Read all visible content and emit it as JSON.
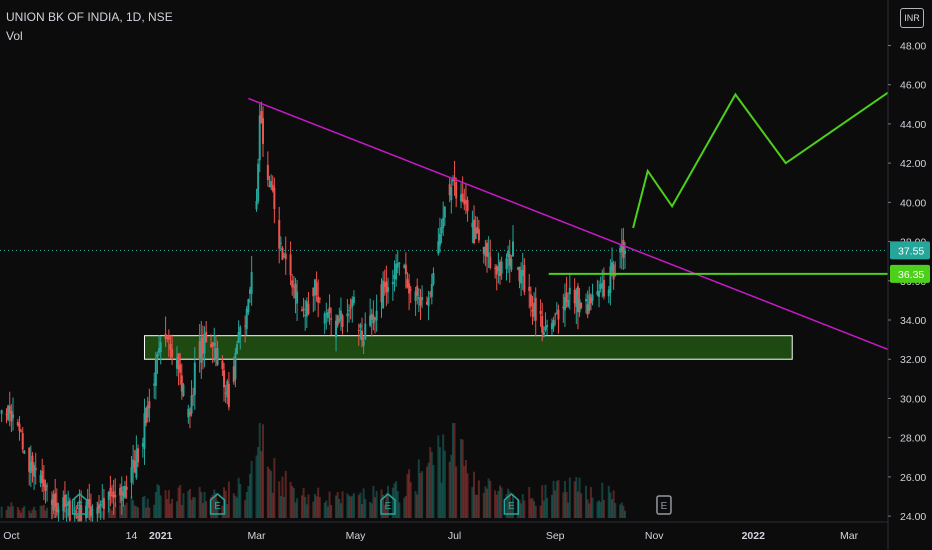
{
  "header": {
    "symbol": "UNION BK OF INDIA, 1D, NSE",
    "volume_label": "Vol",
    "currency": "INR"
  },
  "colors": {
    "background": "#0c0c0c",
    "up": "#26a69a",
    "down": "#ef5350",
    "trendline": "#c61ac6",
    "projection": "#4cd01a",
    "support_zone_fill": "#1e4a12",
    "support_zone_border": "#ffffff",
    "axis_text": "#d1d4dc"
  },
  "chart_data": {
    "type": "candlestick",
    "title": "UNION BK OF INDIA, 1D, NSE",
    "y_axis": {
      "side": "right",
      "unit": "INR",
      "ticks": [
        "48.00",
        "46.00",
        "44.00",
        "42.00",
        "40.00",
        "38.00",
        "36.00",
        "34.00",
        "32.00",
        "30.00",
        "28.00",
        "26.00",
        "24.00"
      ],
      "ylim": [
        23.8,
        49.3
      ]
    },
    "x_axis": {
      "ticks": [
        {
          "label": "Oct",
          "date": "2020-10-01",
          "bold": false
        },
        {
          "label": "14",
          "date": "2020-12-14",
          "bold": false
        },
        {
          "label": "2021",
          "date": "2021-01-01",
          "bold": true
        },
        {
          "label": "Mar",
          "date": "2021-03-01",
          "bold": false
        },
        {
          "label": "May",
          "date": "2021-05-01",
          "bold": false
        },
        {
          "label": "Jul",
          "date": "2021-07-01",
          "bold": false
        },
        {
          "label": "Sep",
          "date": "2021-09-01",
          "bold": false
        },
        {
          "label": "Nov",
          "date": "2021-11-01",
          "bold": false
        },
        {
          "label": "2022",
          "date": "2022-01-01",
          "bold": true
        },
        {
          "label": "Mar",
          "date": "2022-03-01",
          "bold": false
        }
      ],
      "xlim": [
        "2020-09-24",
        "2022-03-25"
      ]
    },
    "price_series": [
      {
        "date": "2020-09-25",
        "close": 30.0
      },
      {
        "date": "2020-10-05",
        "close": 28.4
      },
      {
        "date": "2020-10-15",
        "close": 26.1
      },
      {
        "date": "2020-10-25",
        "close": 24.8
      },
      {
        "date": "2020-11-05",
        "close": 24.3
      },
      {
        "date": "2020-11-15",
        "close": 24.3
      },
      {
        "date": "2020-11-25",
        "close": 24.6
      },
      {
        "date": "2020-12-05",
        "close": 25.0
      },
      {
        "date": "2020-12-12",
        "close": 25.6
      },
      {
        "date": "2020-12-20",
        "close": 27.8
      },
      {
        "date": "2020-12-28",
        "close": 31.2
      },
      {
        "date": "2021-01-05",
        "close": 33.6
      },
      {
        "date": "2021-01-12",
        "close": 31.5
      },
      {
        "date": "2021-01-18",
        "close": 29.0
      },
      {
        "date": "2021-01-24",
        "close": 32.5
      },
      {
        "date": "2021-02-02",
        "close": 33.0
      },
      {
        "date": "2021-02-08",
        "close": 31.5
      },
      {
        "date": "2021-02-12",
        "close": 30.0
      },
      {
        "date": "2021-02-18",
        "close": 32.8
      },
      {
        "date": "2021-02-24",
        "close": 34.6
      },
      {
        "date": "2021-03-01",
        "close": 40.0
      },
      {
        "date": "2021-03-03",
        "close": 44.3
      },
      {
        "date": "2021-03-08",
        "close": 41.5
      },
      {
        "date": "2021-03-15",
        "close": 38.0
      },
      {
        "date": "2021-03-22",
        "close": 36.3
      },
      {
        "date": "2021-03-30",
        "close": 34.2
      },
      {
        "date": "2021-04-06",
        "close": 35.8
      },
      {
        "date": "2021-04-12",
        "close": 34.0
      },
      {
        "date": "2021-04-20",
        "close": 33.6
      },
      {
        "date": "2021-04-28",
        "close": 35.2
      },
      {
        "date": "2021-05-06",
        "close": 33.0
      },
      {
        "date": "2021-05-14",
        "close": 34.8
      },
      {
        "date": "2021-05-22",
        "close": 36.2
      },
      {
        "date": "2021-05-30",
        "close": 37.2
      },
      {
        "date": "2021-06-06",
        "close": 35.0
      },
      {
        "date": "2021-06-14",
        "close": 34.6
      },
      {
        "date": "2021-06-22",
        "close": 38.2
      },
      {
        "date": "2021-06-29",
        "close": 40.8
      },
      {
        "date": "2021-07-06",
        "close": 39.8
      },
      {
        "date": "2021-07-14",
        "close": 38.2
      },
      {
        "date": "2021-07-22",
        "close": 37.0
      },
      {
        "date": "2021-07-30",
        "close": 36.5
      },
      {
        "date": "2021-08-06",
        "close": 37.5
      },
      {
        "date": "2021-08-14",
        "close": 35.6
      },
      {
        "date": "2021-08-22",
        "close": 34.2
      },
      {
        "date": "2021-08-28",
        "close": 33.0
      },
      {
        "date": "2021-09-03",
        "close": 34.5
      },
      {
        "date": "2021-09-10",
        "close": 35.5
      },
      {
        "date": "2021-09-18",
        "close": 34.6
      },
      {
        "date": "2021-09-26",
        "close": 35.0
      },
      {
        "date": "2021-10-03",
        "close": 35.8
      },
      {
        "date": "2021-10-09",
        "close": 37.0
      },
      {
        "date": "2021-10-14",
        "close": 37.55
      }
    ],
    "volume_series": [
      {
        "date": "2020-10-05",
        "volume": 0.1
      },
      {
        "date": "2020-11-05",
        "volume": 0.1
      },
      {
        "date": "2020-12-20",
        "volume": 0.18
      },
      {
        "date": "2021-01-05",
        "volume": 0.3
      },
      {
        "date": "2021-02-02",
        "volume": 0.22
      },
      {
        "date": "2021-02-24",
        "volume": 0.35
      },
      {
        "date": "2021-03-03",
        "volume": 0.95
      },
      {
        "date": "2021-03-08",
        "volume": 0.55
      },
      {
        "date": "2021-03-30",
        "volume": 0.25
      },
      {
        "date": "2021-04-28",
        "volume": 0.2
      },
      {
        "date": "2021-05-30",
        "volume": 0.3
      },
      {
        "date": "2021-06-22",
        "volume": 0.72
      },
      {
        "date": "2021-06-29",
        "volume": 0.88
      },
      {
        "date": "2021-07-14",
        "volume": 0.4
      },
      {
        "date": "2021-08-06",
        "volume": 0.2
      },
      {
        "date": "2021-09-10",
        "volume": 0.32
      },
      {
        "date": "2021-10-09",
        "volume": 0.26
      }
    ],
    "earnings_events": [
      {
        "date": "2020-11-12",
        "label": "E"
      },
      {
        "date": "2021-02-05",
        "label": "E"
      },
      {
        "date": "2021-05-21",
        "label": "E"
      },
      {
        "date": "2021-08-05",
        "label": "E"
      },
      {
        "date": "2021-11-07",
        "label": "E",
        "upcoming": true
      }
    ],
    "last_price": {
      "value": 37.55,
      "label": "37.55"
    },
    "annotations": {
      "trendline": {
        "start": {
          "date": "2021-02-24",
          "price": 45.3
        },
        "end": {
          "date": "2022-03-25",
          "price": 32.5
        }
      },
      "resistance_line": {
        "price": 36.35,
        "label": "36.35",
        "start_date": "2021-08-28"
      },
      "support_zone": {
        "start_date": "2020-12-22",
        "end_date": "2022-01-25",
        "low": 32.0,
        "high": 33.2
      },
      "projection_path": [
        {
          "date": "2021-10-19",
          "price": 38.7
        },
        {
          "date": "2021-10-28",
          "price": 41.6
        },
        {
          "date": "2021-11-12",
          "price": 39.8
        },
        {
          "date": "2021-12-21",
          "price": 45.5
        },
        {
          "date": "2022-01-21",
          "price": 42.0
        },
        {
          "date": "2022-03-25",
          "price": 45.6
        }
      ]
    }
  }
}
